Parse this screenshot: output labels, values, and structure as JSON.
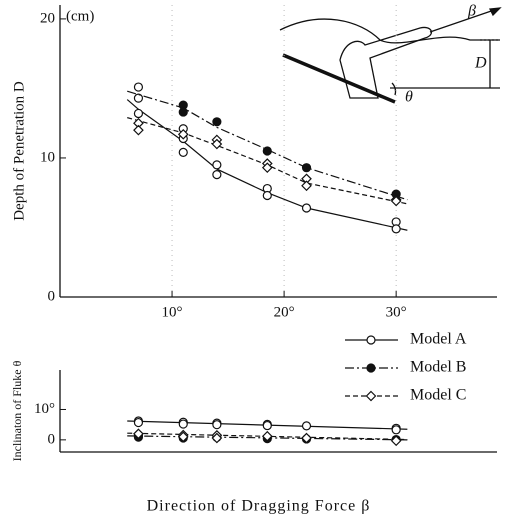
{
  "chart_data": [
    {
      "type": "scatter-line",
      "unit_label": "(cm)",
      "y_label": "Depth of Penetration  D",
      "xlim": [
        0,
        39
      ],
      "ylim": [
        0,
        21
      ],
      "xticks": [
        {
          "value": 10,
          "label": "10°"
        },
        {
          "value": 20,
          "label": "20°"
        },
        {
          "value": 30,
          "label": "30°"
        }
      ],
      "yticks": [
        0,
        10,
        20
      ],
      "grid": true,
      "annotations": [
        "β",
        "D",
        "θ"
      ],
      "series": [
        {
          "color": "#111",
          "marker": "circle-open",
          "dash": "solid",
          "x": [
            7,
            7,
            7,
            11,
            11,
            11,
            14,
            14,
            18.5,
            18.5,
            22,
            30,
            30
          ],
          "values": [
            15.1,
            14.3,
            13.2,
            12.1,
            11.4,
            10.4,
            9.5,
            8.8,
            7.8,
            7.3,
            6.4,
            5.4,
            4.9
          ],
          "line_x": [
            6,
            7,
            11,
            14,
            18.5,
            22,
            31
          ],
          "line_values": [
            14.2,
            13.5,
            11.2,
            9.2,
            7.5,
            6.4,
            4.8
          ]
        },
        {
          "color": "#111",
          "marker": "circle-filled",
          "dash": "dashdot",
          "x": [
            11,
            11,
            14,
            18.5,
            22,
            30
          ],
          "values": [
            13.8,
            13.3,
            12.6,
            10.5,
            9.3,
            7.4
          ],
          "line_x": [
            6,
            11,
            14,
            18.5,
            22,
            31
          ],
          "line_values": [
            14.8,
            13.6,
            12.2,
            10.6,
            9.3,
            7.0
          ]
        },
        {
          "color": "#111",
          "marker": "diamond-open",
          "dash": "dashed",
          "x": [
            7,
            7,
            11,
            14,
            14,
            18.5,
            18.5,
            22,
            22,
            30,
            30
          ],
          "values": [
            12.5,
            12.0,
            11.7,
            11.3,
            11.0,
            9.6,
            9.3,
            8.5,
            8.0,
            7.0,
            6.9
          ],
          "line_x": [
            6,
            11,
            14,
            18.5,
            22,
            31
          ],
          "line_values": [
            12.9,
            11.8,
            10.9,
            9.5,
            8.2,
            6.7
          ]
        }
      ]
    },
    {
      "type": "scatter-line",
      "y_label": "Inclinaton of Fluke  θ",
      "x_label": "Direction of Dragging Force  β",
      "xlim": [
        0,
        39
      ],
      "ylim": [
        -4,
        23
      ],
      "yticks": [
        0,
        {
          "value": 10,
          "label": "10°"
        }
      ],
      "series": [
        {
          "name": "Model A",
          "color": "#111",
          "marker": "circle-open",
          "dash": "solid",
          "x": [
            7,
            7,
            11,
            11,
            14,
            14,
            18.5,
            18.5,
            22,
            30,
            30
          ],
          "values": [
            6.2,
            5.7,
            5.8,
            5.2,
            5.5,
            5.0,
            5.1,
            4.7,
            4.6,
            3.8,
            3.3
          ],
          "line_x": [
            6,
            31
          ],
          "line_values": [
            6.2,
            3.5
          ]
        },
        {
          "name": "Model B",
          "color": "#111",
          "marker": "circle-filled",
          "dash": "dashdot",
          "x": [
            7,
            7,
            11,
            14,
            18.5,
            22,
            30
          ],
          "values": [
            1.5,
            0.9,
            0.6,
            0.8,
            0.4,
            0.3,
            0.1
          ],
          "line_x": [
            6,
            31
          ],
          "line_values": [
            1.3,
            0
          ]
        },
        {
          "name": "Model C",
          "color": "#111",
          "marker": "diamond-open",
          "dash": "dashed",
          "x": [
            7,
            11,
            11,
            14,
            14,
            18.5,
            22,
            30
          ],
          "values": [
            2.0,
            1.6,
            1.0,
            1.5,
            0.6,
            1.2,
            0.6,
            -0.3
          ],
          "line_x": [
            6,
            31
          ],
          "line_values": [
            2.2,
            0.1
          ]
        }
      ]
    }
  ]
}
